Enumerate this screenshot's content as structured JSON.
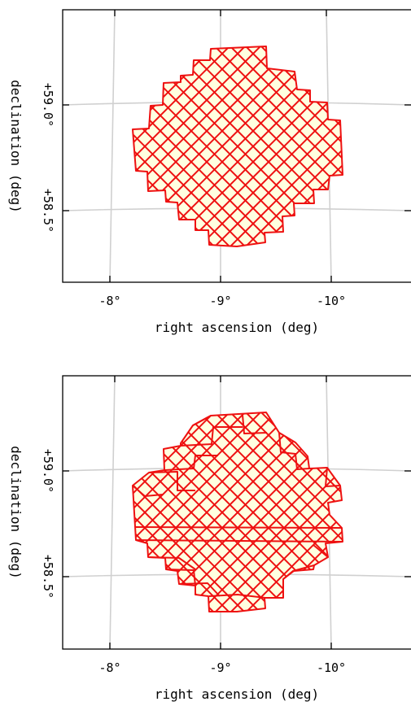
{
  "panels": [
    {
      "x_axis_label": "right ascension (deg)",
      "y_axis_label": "declination (deg)",
      "x_ticks": [
        "-8°",
        "-9°",
        "-10°"
      ],
      "y_ticks": [
        "+59.0°",
        "+58.5°"
      ]
    },
    {
      "x_axis_label": "right ascension (deg)",
      "y_axis_label": "declination (deg)",
      "x_ticks": [
        "-8°",
        "-9°",
        "-10°"
      ],
      "y_ticks": [
        "+59.0°",
        "+58.5°"
      ]
    }
  ],
  "colors": {
    "footprint_outline": "#ee1111",
    "footprint_fill": "#ffffe0",
    "grid": "#d0d0d0"
  }
}
